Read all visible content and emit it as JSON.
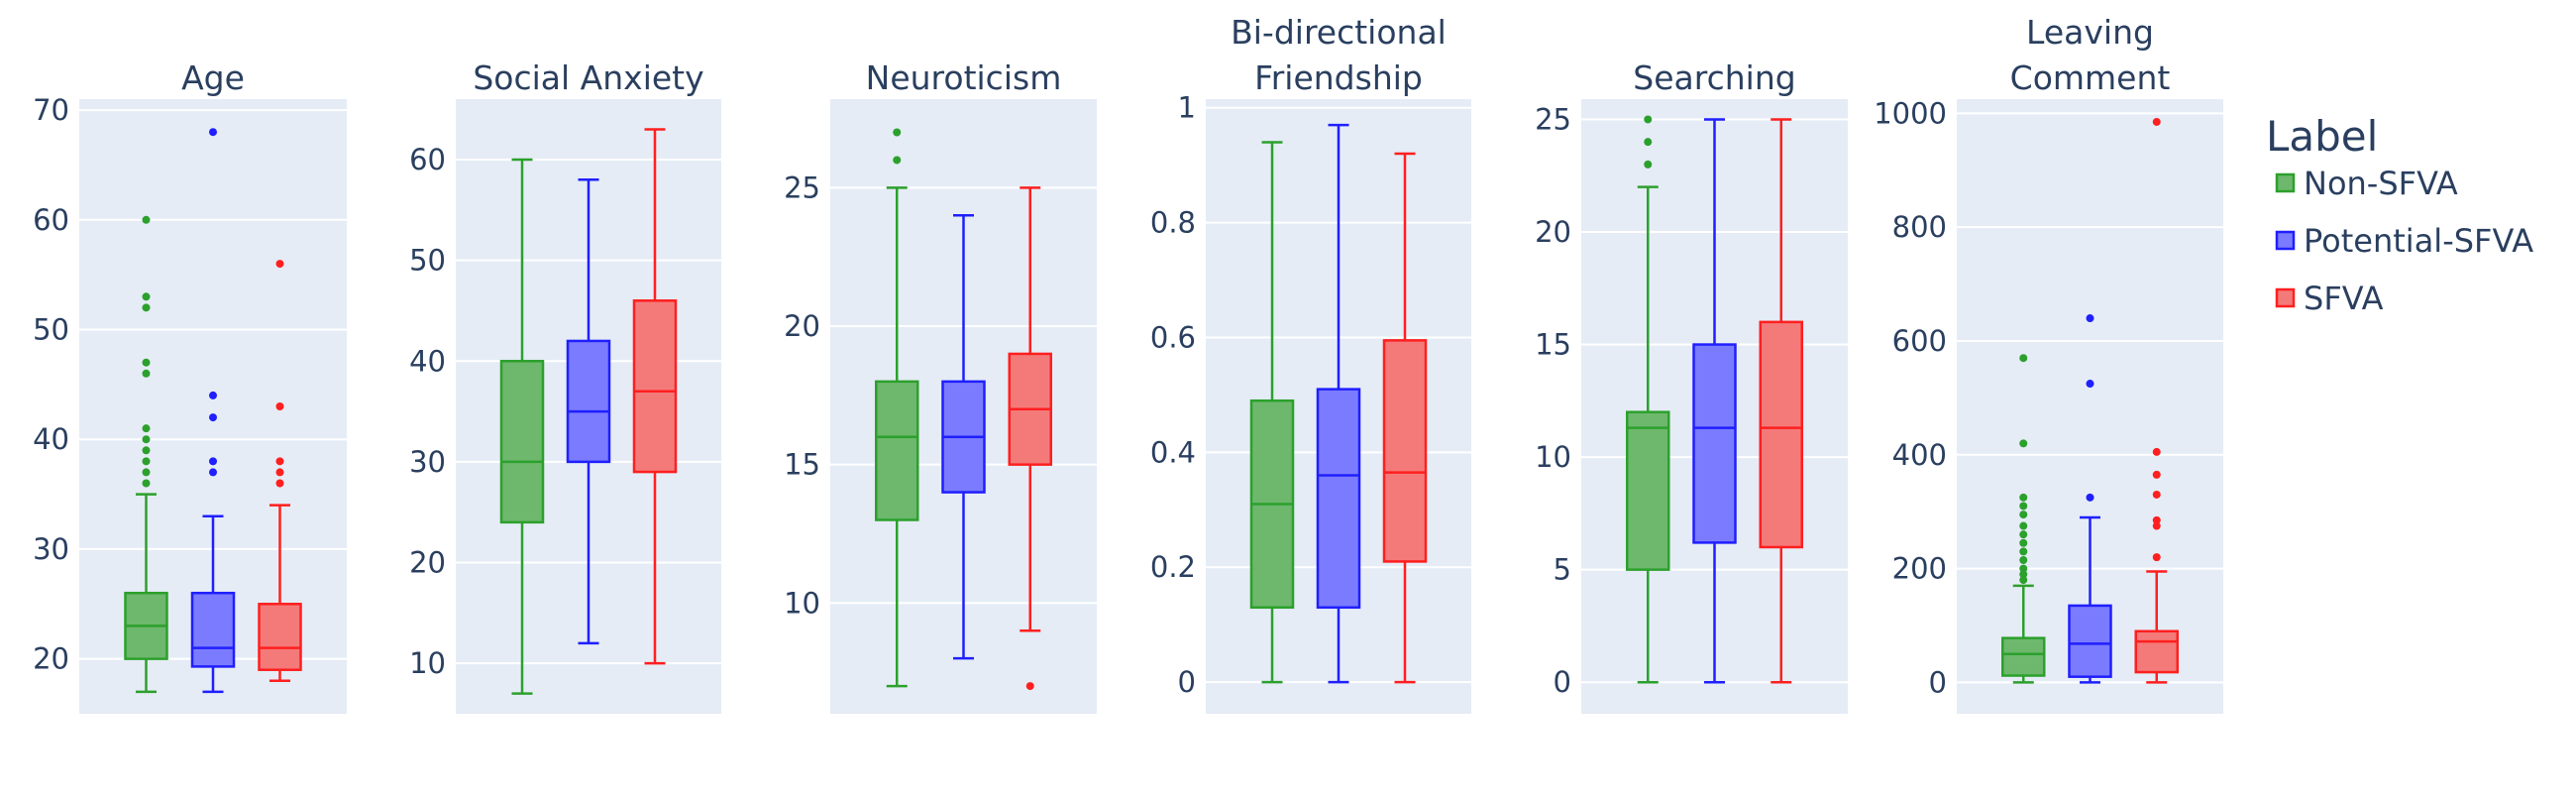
{
  "legend": {
    "title": "Label",
    "items": [
      {
        "name": "Non-SFVA",
        "stroke": "#2ca02c",
        "fill": "#6db86d"
      },
      {
        "name": "Potential-SFVA",
        "stroke": "#1f1fff",
        "fill": "#7b7bff"
      },
      {
        "name": "SFVA",
        "stroke": "#ff1f1f",
        "fill": "#f47a7a"
      }
    ]
  },
  "chart_data": [
    {
      "type": "box",
      "title": [
        "Age"
      ],
      "ylim": [
        15,
        71
      ],
      "ticks": [
        20,
        30,
        40,
        50,
        60,
        70
      ],
      "tick_labels": [
        "20",
        "30",
        "40",
        "50",
        "60",
        "70"
      ],
      "series": [
        {
          "name": "Non-SFVA",
          "min": 17,
          "q1": 20,
          "median": 23,
          "q3": 26,
          "max": 35,
          "outliers": [
            36,
            37,
            38,
            39,
            40,
            41,
            46,
            47,
            52,
            53,
            60
          ]
        },
        {
          "name": "Potential-SFVA",
          "min": 17,
          "q1": 19.3,
          "median": 21,
          "q3": 26,
          "max": 33,
          "outliers": [
            37,
            38,
            42,
            44,
            68
          ]
        },
        {
          "name": "SFVA",
          "min": 18,
          "q1": 19,
          "median": 21,
          "q3": 25,
          "max": 34,
          "outliers": [
            36,
            37,
            38,
            43,
            56
          ]
        }
      ]
    },
    {
      "type": "box",
      "title": [
        "Social Anxiety"
      ],
      "ylim": [
        5,
        66
      ],
      "ticks": [
        10,
        20,
        30,
        40,
        50,
        60
      ],
      "tick_labels": [
        "10",
        "20",
        "30",
        "40",
        "50",
        "60"
      ],
      "series": [
        {
          "name": "Non-SFVA",
          "min": 7,
          "q1": 24,
          "median": 30,
          "q3": 40,
          "max": 60,
          "outliers": []
        },
        {
          "name": "Potential-SFVA",
          "min": 12,
          "q1": 30,
          "median": 35,
          "q3": 42,
          "max": 58,
          "outliers": []
        },
        {
          "name": "SFVA",
          "min": 10,
          "q1": 29,
          "median": 37,
          "q3": 46,
          "max": 63,
          "outliers": []
        }
      ]
    },
    {
      "type": "box",
      "title": [
        "Neuroticism"
      ],
      "ylim": [
        6,
        28.2
      ],
      "ticks": [
        10,
        15,
        20,
        25
      ],
      "tick_labels": [
        "10",
        "15",
        "20",
        "25"
      ],
      "series": [
        {
          "name": "Non-SFVA",
          "min": 7,
          "q1": 13,
          "median": 16,
          "q3": 18,
          "max": 25,
          "outliers": [
            26,
            27
          ]
        },
        {
          "name": "Potential-SFVA",
          "min": 8,
          "q1": 14,
          "median": 16,
          "q3": 18,
          "max": 24,
          "outliers": []
        },
        {
          "name": "SFVA",
          "min": 9,
          "q1": 15,
          "median": 17,
          "q3": 19,
          "max": 25,
          "outliers": [
            7
          ]
        }
      ]
    },
    {
      "type": "box",
      "title": [
        "Bi-directional",
        "Friendship"
      ],
      "ylim": [
        -0.055,
        1.015
      ],
      "ticks": [
        0,
        0.2,
        0.4,
        0.6,
        0.8,
        1
      ],
      "tick_labels": [
        "0",
        "0.2",
        "0.4",
        "0.6",
        "0.8",
        "1"
      ],
      "series": [
        {
          "name": "Non-SFVA",
          "min": 0,
          "q1": 0.13,
          "median": 0.31,
          "q3": 0.49,
          "max": 0.94,
          "outliers": []
        },
        {
          "name": "Potential-SFVA",
          "min": 0,
          "q1": 0.13,
          "median": 0.36,
          "q3": 0.51,
          "max": 0.97,
          "outliers": []
        },
        {
          "name": "SFVA",
          "min": 0,
          "q1": 0.21,
          "median": 0.365,
          "q3": 0.595,
          "max": 0.92,
          "outliers": []
        }
      ]
    },
    {
      "type": "box",
      "title": [
        "Searching"
      ],
      "ylim": [
        -1.4,
        25.9
      ],
      "ticks": [
        0,
        5,
        10,
        15,
        20,
        25
      ],
      "tick_labels": [
        "0",
        "5",
        "10",
        "15",
        "20",
        "25"
      ],
      "series": [
        {
          "name": "Non-SFVA",
          "min": 0,
          "q1": 5,
          "median": 11.3,
          "q3": 12,
          "max": 22,
          "outliers": [
            23,
            24,
            25
          ]
        },
        {
          "name": "Potential-SFVA",
          "min": 0,
          "q1": 6.2,
          "median": 11.3,
          "q3": 15,
          "max": 25,
          "outliers": []
        },
        {
          "name": "SFVA",
          "min": 0,
          "q1": 6,
          "median": 11.3,
          "q3": 16,
          "max": 25,
          "outliers": []
        }
      ]
    },
    {
      "type": "box",
      "title": [
        "Leaving",
        "Comment"
      ],
      "ylim": [
        -55,
        1025
      ],
      "ticks": [
        0,
        200,
        400,
        600,
        800,
        1000
      ],
      "tick_labels": [
        "0",
        "200",
        "400",
        "600",
        "800",
        "1000"
      ],
      "series": [
        {
          "name": "Non-SFVA",
          "min": 0,
          "q1": 12,
          "median": 50,
          "q3": 78,
          "max": 170,
          "outliers": [
            180,
            190,
            200,
            215,
            230,
            245,
            260,
            275,
            295,
            310,
            325,
            420,
            570
          ]
        },
        {
          "name": "Potential-SFVA",
          "min": 0,
          "q1": 10,
          "median": 68,
          "q3": 135,
          "max": 290,
          "outliers": [
            325,
            525,
            640
          ]
        },
        {
          "name": "SFVA",
          "min": 0,
          "q1": 18,
          "median": 72,
          "q3": 90,
          "max": 195,
          "outliers": [
            220,
            275,
            285,
            330,
            365,
            405,
            985
          ]
        }
      ]
    }
  ]
}
